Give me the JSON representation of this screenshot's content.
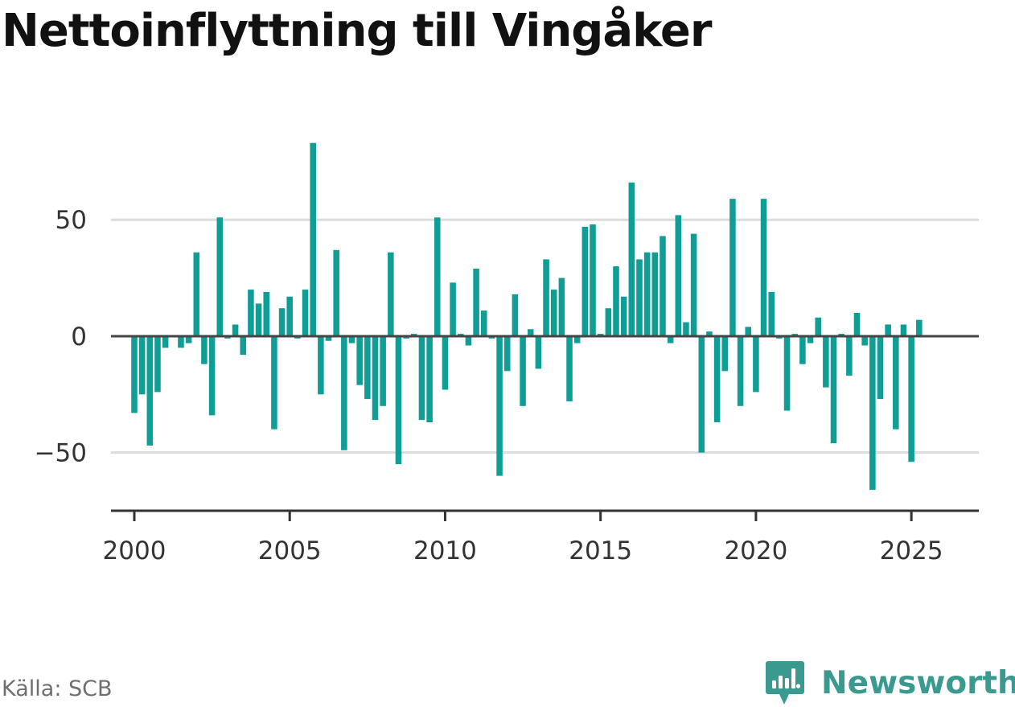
{
  "title": "Nettoinflyttning till Vingåker",
  "source": "Källa: SCB",
  "brand": {
    "name": "Newsworthy",
    "icon": "newsworthy-logo-icon",
    "color": "#3a9a8f"
  },
  "chart_data": {
    "type": "bar",
    "title": "Nettoinflyttning till Vingåker",
    "xlabel": "",
    "ylabel": "",
    "color": "#0e9e96",
    "grid": true,
    "xlim": [
      1999.25,
      2027.17
    ],
    "ylim": [
      -75,
      95
    ],
    "yticks": [
      {
        "value": -50,
        "label": "−50"
      },
      {
        "value": 0,
        "label": "0"
      },
      {
        "value": 50,
        "label": "50"
      }
    ],
    "xticks": [
      {
        "value": 2000,
        "label": "2000"
      },
      {
        "value": 2005,
        "label": "2005"
      },
      {
        "value": 2010,
        "label": "2010"
      },
      {
        "value": 2015,
        "label": "2015"
      },
      {
        "value": 2020,
        "label": "2020"
      },
      {
        "value": 2025,
        "label": "2025"
      }
    ],
    "start_year": 2000,
    "quarters_per_year": 4,
    "values": [
      -33,
      -25,
      -47,
      -24,
      -5,
      0,
      -5,
      -3,
      36,
      -12,
      -34,
      51,
      -1,
      5,
      -8,
      20,
      14,
      19,
      -40,
      12,
      17,
      -1,
      20,
      83,
      -25,
      -2,
      37,
      -49,
      -3,
      -21,
      -27,
      -36,
      -30,
      36,
      -55,
      -1,
      1,
      -36,
      -37,
      51,
      -23,
      23,
      1,
      -4,
      29,
      11,
      -1,
      -60,
      -15,
      18,
      -30,
      3,
      -14,
      33,
      20,
      25,
      -28,
      -3,
      47,
      48,
      1,
      12,
      30,
      17,
      66,
      33,
      36,
      36,
      43,
      -3,
      52,
      6,
      44,
      -50,
      2,
      -37,
      -15,
      59,
      -30,
      4,
      -24,
      59,
      19,
      -1,
      -32,
      1,
      -12,
      -3,
      8,
      -22,
      -46,
      1,
      -17,
      10,
      -4,
      -66,
      -27,
      5,
      -40,
      5,
      -54,
      7
    ]
  }
}
